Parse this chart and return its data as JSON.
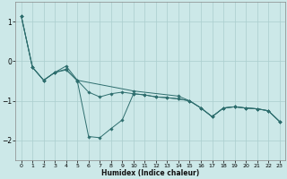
{
  "xlabel": "Humidex (Indice chaleur)",
  "background_color": "#cce8e8",
  "grid_color": "#aacece",
  "line_color": "#2e6e6e",
  "xlim": [
    -0.5,
    23.5
  ],
  "ylim": [
    -2.5,
    1.5
  ],
  "yticks": [
    -2,
    -1,
    0,
    1
  ],
  "xticks": [
    0,
    1,
    2,
    3,
    4,
    5,
    6,
    7,
    8,
    9,
    10,
    11,
    12,
    13,
    14,
    15,
    16,
    17,
    18,
    19,
    20,
    21,
    22,
    23
  ],
  "line1_x": [
    0,
    1,
    2,
    3,
    4,
    5,
    6,
    7,
    8,
    9,
    10,
    11,
    12,
    13,
    14,
    15,
    16,
    17,
    18,
    19,
    20,
    21,
    22,
    23
  ],
  "line1_y": [
    1.15,
    -0.15,
    -0.48,
    -0.28,
    -0.2,
    -0.5,
    -1.9,
    -1.93,
    -1.7,
    -1.48,
    -0.82,
    -0.85,
    -0.9,
    -0.92,
    -0.95,
    -1.0,
    -1.18,
    -1.4,
    -1.18,
    -1.15,
    -1.18,
    -1.2,
    -1.25,
    -1.52
  ],
  "line2_x": [
    0,
    1,
    2,
    3,
    4,
    5,
    6,
    7,
    8,
    9,
    10,
    11,
    12,
    13,
    14,
    15,
    16,
    17,
    18,
    19,
    20,
    21,
    22,
    23
  ],
  "line2_y": [
    1.15,
    -0.15,
    -0.48,
    -0.28,
    -0.22,
    -0.48,
    -0.78,
    -0.9,
    -0.82,
    -0.78,
    -0.82,
    -0.85,
    -0.9,
    -0.92,
    -0.95,
    -1.0,
    -1.18,
    -1.4,
    -1.18,
    -1.15,
    -1.18,
    -1.2,
    -1.25,
    -1.52
  ],
  "line3_x": [
    0,
    1,
    2,
    3,
    4,
    5,
    10,
    14,
    15,
    16,
    17,
    18,
    19,
    20,
    21,
    22,
    23
  ],
  "line3_y": [
    1.15,
    -0.15,
    -0.48,
    -0.28,
    -0.12,
    -0.48,
    -0.75,
    -0.88,
    -1.0,
    -1.18,
    -1.4,
    -1.18,
    -1.15,
    -1.18,
    -1.2,
    -1.25,
    -1.52
  ]
}
